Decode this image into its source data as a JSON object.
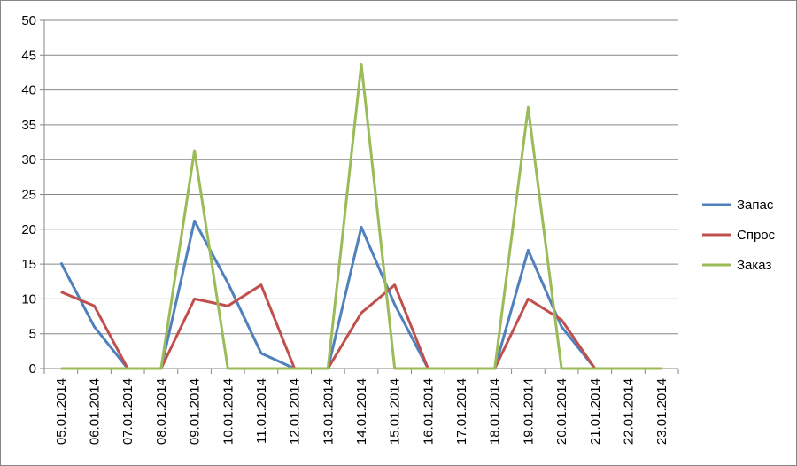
{
  "chart_data": {
    "type": "line",
    "title": "",
    "xlabel": "",
    "ylabel": "",
    "ylim": [
      0,
      50
    ],
    "yticks": [
      0,
      5,
      10,
      15,
      20,
      25,
      30,
      35,
      40,
      45,
      50
    ],
    "grid": "horizontal",
    "legend_position": "right",
    "categories": [
      "05.01.2014",
      "06.01.2014",
      "07.01.2014",
      "08.01.2014",
      "09.01.2014",
      "10.01.2014",
      "11.01.2014",
      "12.01.2014",
      "13.01.2014",
      "14.01.2014",
      "15.01.2014",
      "16.01.2014",
      "17.01.2014",
      "18.01.2014",
      "19.01.2014",
      "20.01.2014",
      "21.01.2014",
      "22.01.2014",
      "23.01.2014"
    ],
    "series": [
      {
        "name": "Запас",
        "color": "#4f81bd",
        "values": [
          15.2,
          6,
          0,
          0,
          21.2,
          12.3,
          2.2,
          0,
          0,
          20.3,
          9.2,
          0,
          0,
          0,
          17,
          6,
          0,
          0,
          0
        ]
      },
      {
        "name": "Спрос",
        "color": "#c0504d",
        "values": [
          11,
          9,
          0,
          0,
          10,
          9,
          12,
          0,
          0,
          8,
          12,
          0,
          0,
          0,
          10,
          7,
          0,
          0,
          0
        ]
      },
      {
        "name": "Заказ",
        "color": "#9bbb59",
        "values": [
          0,
          0,
          0,
          0,
          31.3,
          0,
          0,
          0,
          0,
          43.7,
          0,
          0,
          0,
          0,
          37.5,
          0,
          0,
          0,
          0
        ]
      }
    ]
  }
}
